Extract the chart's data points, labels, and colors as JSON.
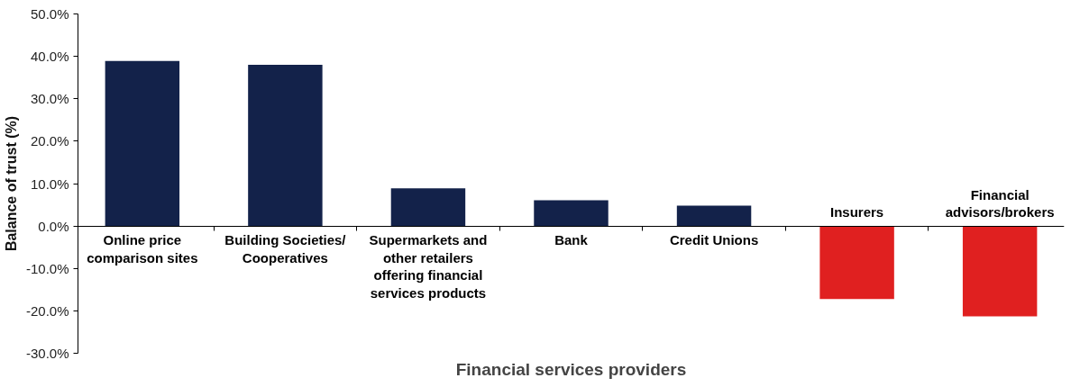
{
  "chart_data": {
    "type": "bar",
    "xlabel": "Financial services providers",
    "ylabel": "Balance of trust (%)",
    "categories": [
      "Online price comparison sites",
      "Building Societies/ Cooperatives",
      "Supermarkets and other retailers offering financial services products",
      "Bank",
      "Credit Unions",
      "Insurers",
      "Financial advisors/brokers"
    ],
    "values": [
      38.9,
      38.0,
      8.9,
      6.1,
      4.8,
      -17.2,
      -21.3
    ],
    "colors": [
      "#13224a",
      "#13224a",
      "#13224a",
      "#13224a",
      "#13224a",
      "#e02020",
      "#e02020"
    ],
    "ylim": [
      -30,
      50
    ],
    "yticks": [
      {
        "value": -30,
        "label": "-30.0%"
      },
      {
        "value": -20,
        "label": "-20.0%"
      },
      {
        "value": -10,
        "label": "-10.0%"
      },
      {
        "value": 0,
        "label": "0.0%"
      },
      {
        "value": 10,
        "label": "10.0%"
      },
      {
        "value": 20,
        "label": "20.0%"
      },
      {
        "value": 30,
        "label": "30.0%"
      },
      {
        "value": 40,
        "label": "40.0%"
      },
      {
        "value": 50,
        "label": "50.0%"
      }
    ],
    "tick_labels": "y",
    "grid": false
  }
}
